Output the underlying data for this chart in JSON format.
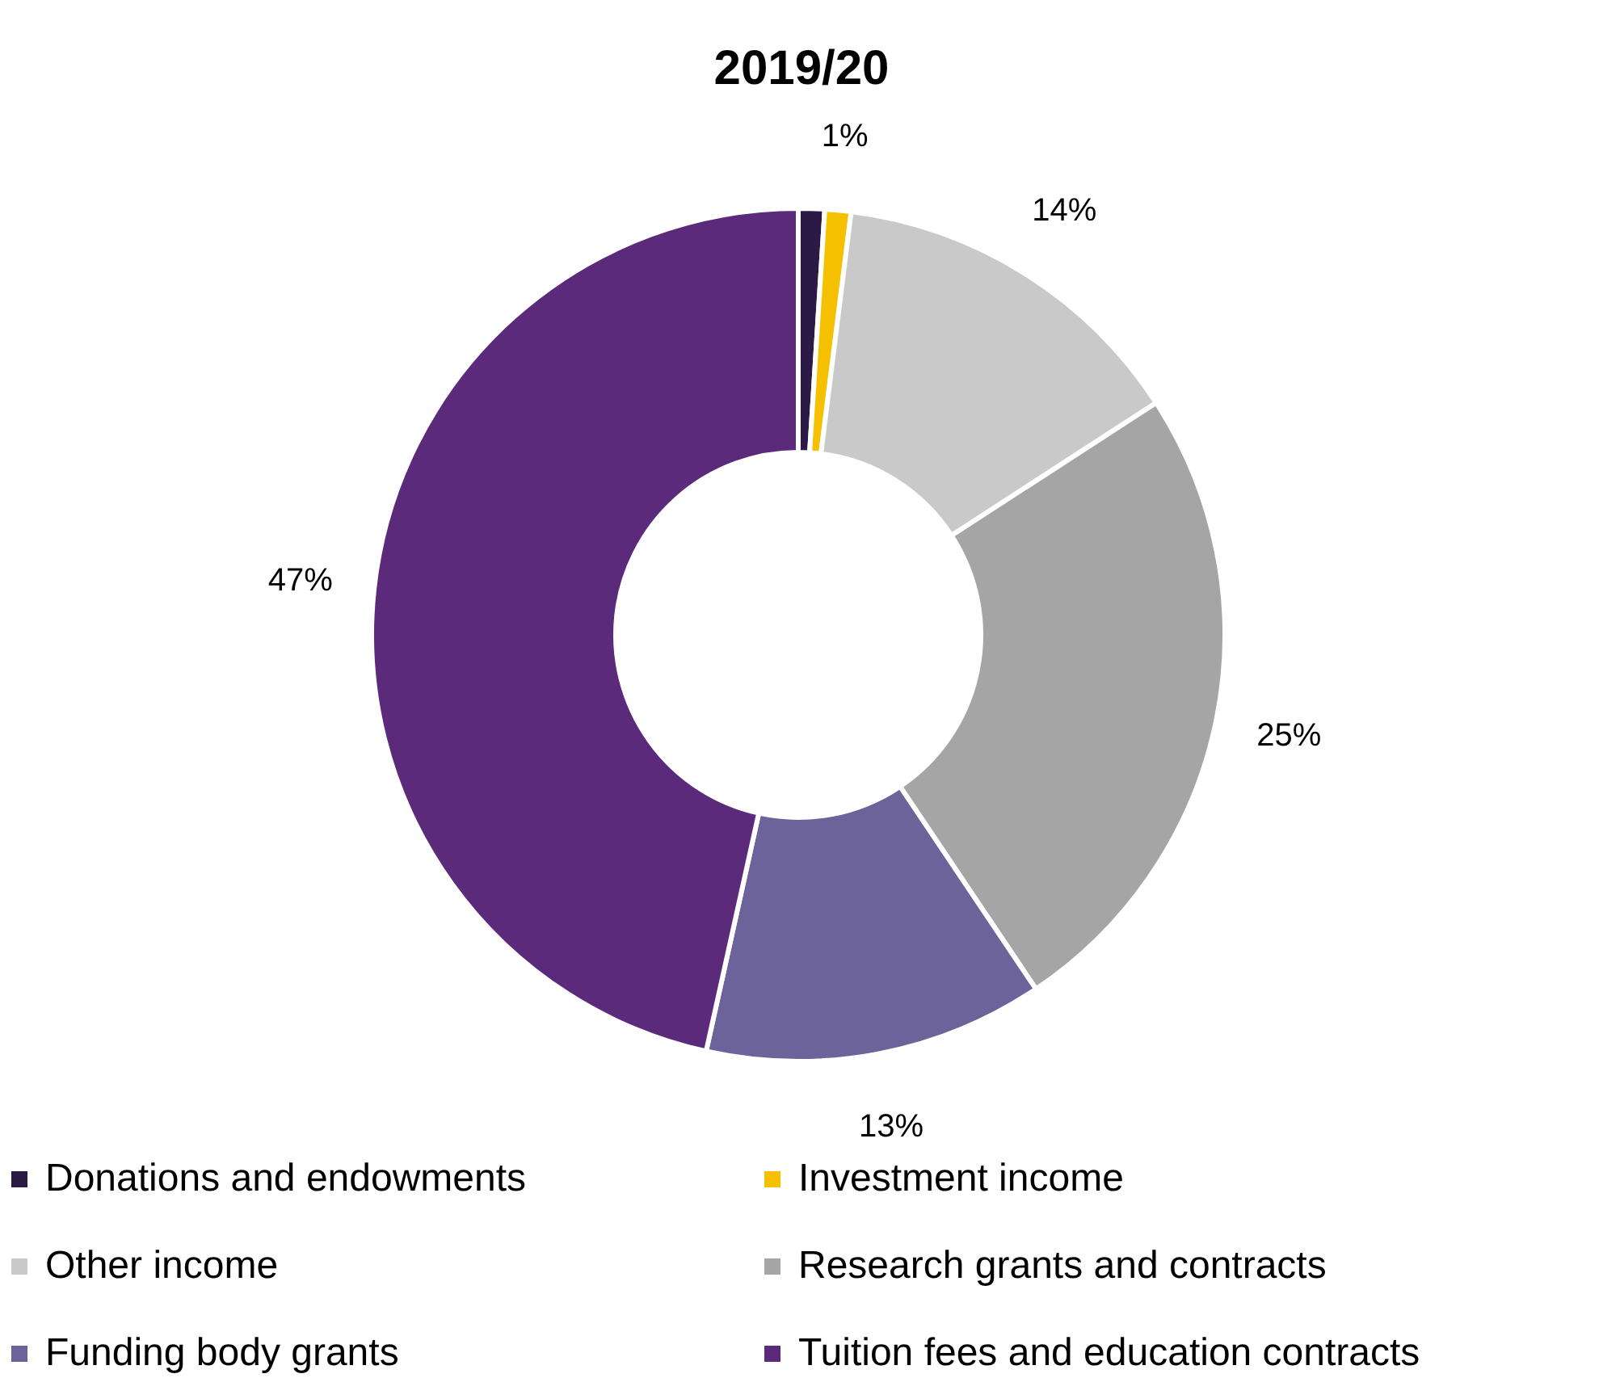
{
  "chart_data": {
    "type": "donut",
    "title": "2019/20",
    "categories": [
      "Donations and endowments",
      "Investment income",
      "Other income",
      "Research grants and contracts",
      "Funding body grants",
      "Tuition fees and education contracts"
    ],
    "values": [
      1,
      1,
      14,
      25,
      13,
      47
    ],
    "value_labels": [
      null,
      "1%",
      "14%",
      "25%",
      "13%",
      "47%"
    ],
    "colors": [
      "#2b1a45",
      "#f5c000",
      "#c9c9c9",
      "#a5a5a5",
      "#6b6399",
      "#5c2a7a"
    ],
    "legend": "bottom"
  }
}
